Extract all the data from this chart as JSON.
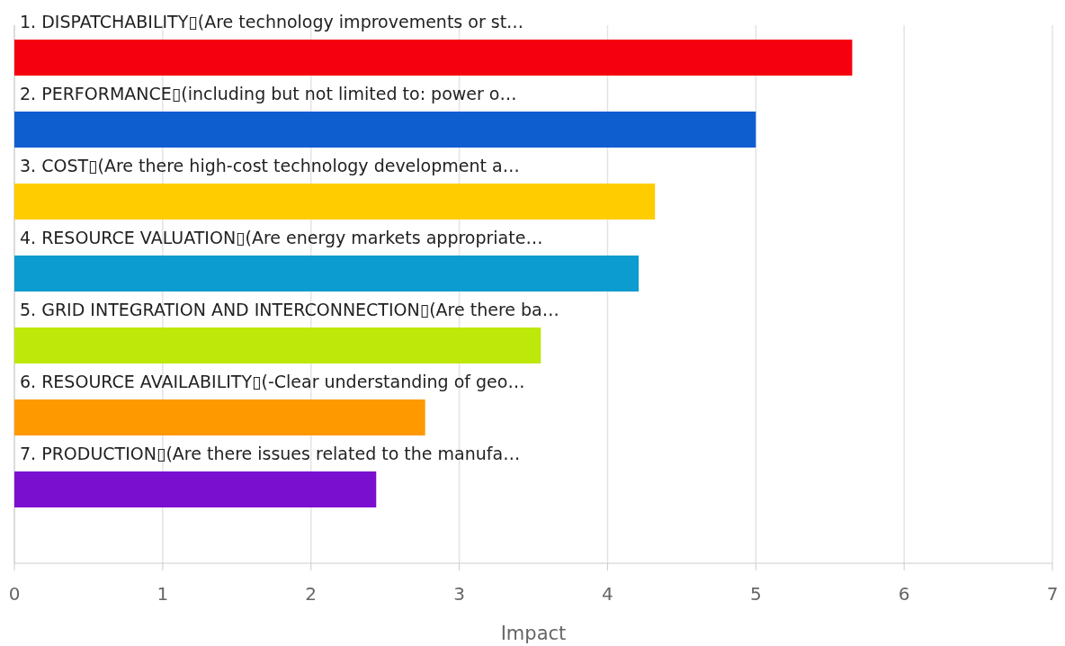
{
  "chart_data": {
    "type": "bar",
    "orientation": "horizontal",
    "xlabel": "Impact",
    "categories": [
      "1. DISPATCHABILITY▯(Are technology improvements or st…",
      "2. PERFORMANCE▯(including but not limited to: power o…",
      "3. COST▯(Are there high-cost technology development a…",
      "4. RESOURCE VALUATION▯(Are energy markets appropriate…",
      "5. GRID INTEGRATION AND INTERCONNECTION▯(Are there ba…",
      "6. RESOURCE AVAILABILITY▯(-Clear understanding of geo…",
      "7. PRODUCTION▯(Are there issues related to the manufa…"
    ],
    "values": [
      5.65,
      5.0,
      4.32,
      4.21,
      3.55,
      2.77,
      2.44
    ],
    "colors": [
      "#f5000f",
      "#0f5ecf",
      "#ffcc00",
      "#0d9ccf",
      "#bde80a",
      "#ff9900",
      "#7b0fcf"
    ],
    "xlim": [
      0,
      7
    ],
    "xticks": [
      0,
      1,
      2,
      3,
      4,
      5,
      6,
      7
    ],
    "grid": "x"
  }
}
